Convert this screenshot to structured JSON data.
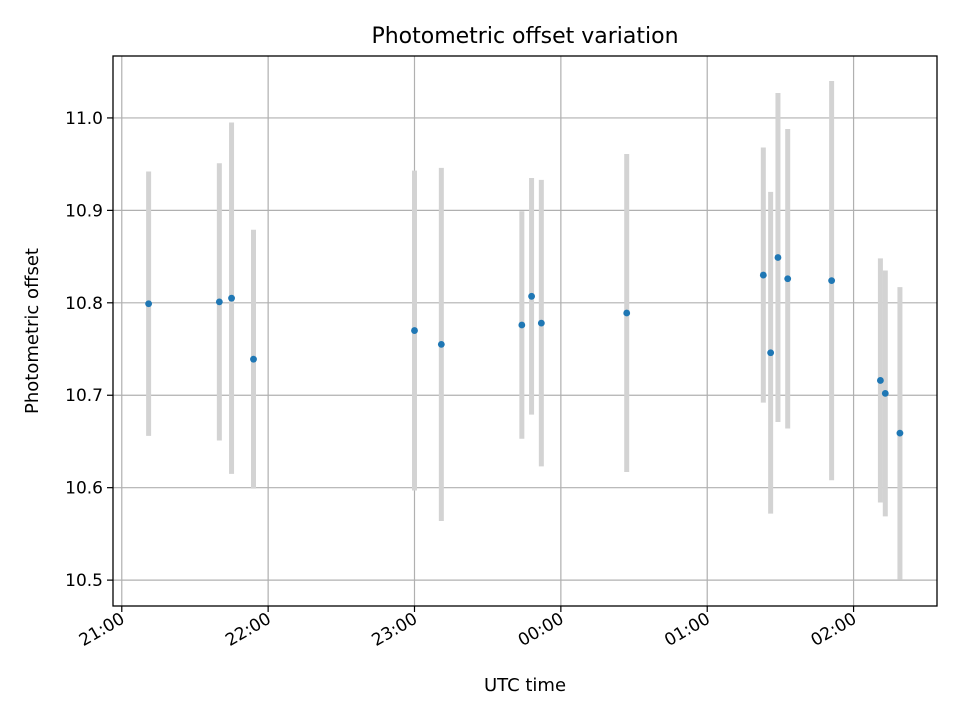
{
  "chart_data": {
    "type": "scatter",
    "title": "Photometric offset variation",
    "xlabel": "UTC time",
    "ylabel": "Photometric offset",
    "x_ticks": [
      "21:00",
      "22:00",
      "23:00",
      "00:00",
      "01:00",
      "02:00"
    ],
    "x_tick_hours": [
      21,
      22,
      23,
      24,
      25,
      26
    ],
    "x_range_hours": [
      20.94,
      26.57
    ],
    "y_ticks": [
      "10.5",
      "10.6",
      "10.7",
      "10.8",
      "10.9",
      "11.0"
    ],
    "y_tick_values": [
      10.5,
      10.6,
      10.7,
      10.8,
      10.9,
      11.0
    ],
    "ylim": [
      10.472,
      11.067
    ],
    "grid": true,
    "marker_color": "#1f77b4",
    "errorbar_color": "#d3d3d3",
    "points": [
      {
        "time": "21:11",
        "y": 10.799,
        "err": 0.143
      },
      {
        "time": "21:40",
        "y": 10.801,
        "err": 0.15
      },
      {
        "time": "21:45",
        "y": 10.805,
        "err": 0.19
      },
      {
        "time": "21:54",
        "y": 10.739,
        "err": 0.14
      },
      {
        "time": "23:00",
        "y": 10.77,
        "err": 0.173
      },
      {
        "time": "23:11",
        "y": 10.755,
        "err": 0.191
      },
      {
        "time": "23:44",
        "y": 10.776,
        "err": 0.123
      },
      {
        "time": "23:48",
        "y": 10.807,
        "err": 0.128
      },
      {
        "time": "23:52",
        "y": 10.778,
        "err": 0.155
      },
      {
        "time": "00:27",
        "y": 10.789,
        "err": 0.172
      },
      {
        "time": "01:23",
        "y": 10.83,
        "err": 0.138
      },
      {
        "time": "01:26",
        "y": 10.746,
        "err": 0.174
      },
      {
        "time": "01:29",
        "y": 10.849,
        "err": 0.178
      },
      {
        "time": "01:33",
        "y": 10.826,
        "err": 0.162
      },
      {
        "time": "01:51",
        "y": 10.824,
        "err": 0.216
      },
      {
        "time": "02:11",
        "y": 10.716,
        "err": 0.132
      },
      {
        "time": "02:13",
        "y": 10.702,
        "err": 0.133
      },
      {
        "time": "02:19",
        "y": 10.659,
        "err": 0.158
      }
    ]
  }
}
